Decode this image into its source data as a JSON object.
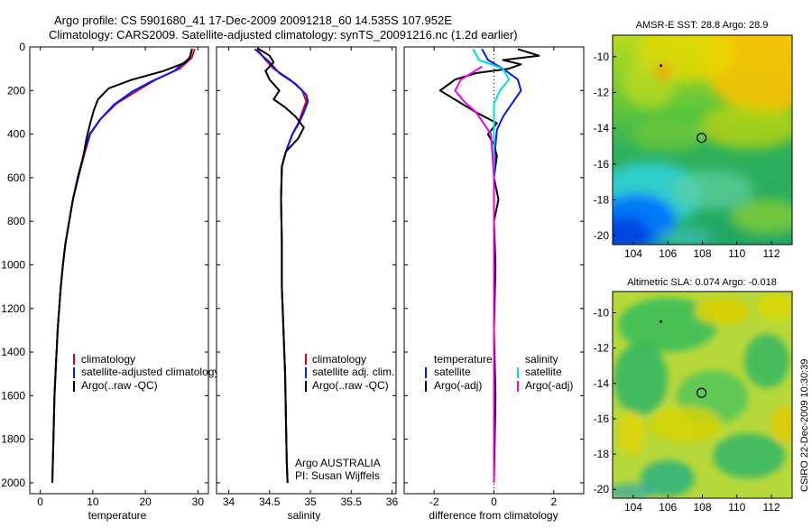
{
  "header": {
    "line1": "Argo profile: CS 5901680_41 17-Dec-2009 20091218_60 14.535S 107.952E",
    "line2": "Climatology: CARS2009. Satellite-adjusted climatology: synTS_20091216.nc (1.2d earlier)"
  },
  "credit": "CSIRO 22-Dec-2009 10:30:39",
  "chart_data": [
    {
      "type": "line",
      "panel": "temperature",
      "xlabel": "temperature",
      "ylabel": "",
      "xlim": [
        -2,
        32
      ],
      "ylim": [
        2050,
        0
      ],
      "x_ticks": [
        0,
        10,
        20,
        30
      ],
      "y_ticks": [
        0,
        200,
        400,
        600,
        800,
        1000,
        1200,
        1400,
        1600,
        1800,
        2000
      ],
      "legend": [
        "climatology",
        "satellite-adjusted climatology",
        "Argo(..raw -QC)"
      ],
      "series": [
        {
          "name": "climatology",
          "color": "#e00000",
          "points": [
            [
              29.4,
              10
            ],
            [
              28.8,
              50
            ],
            [
              26.5,
              100
            ],
            [
              22,
              150
            ],
            [
              18.5,
              200
            ],
            [
              14.5,
              260
            ],
            [
              11.5,
              330
            ],
            [
              9.5,
              400
            ],
            [
              8.3,
              500
            ],
            [
              7.2,
              600
            ],
            [
              6.2,
              700
            ],
            [
              5.5,
              800
            ],
            [
              4.8,
              900
            ],
            [
              4.3,
              1000
            ],
            [
              3.9,
              1100
            ],
            [
              3.6,
              1200
            ],
            [
              3.3,
              1300
            ],
            [
              3.1,
              1400
            ],
            [
              2.9,
              1500
            ],
            [
              2.7,
              1600
            ],
            [
              2.6,
              1700
            ],
            [
              2.5,
              1800
            ],
            [
              2.4,
              1900
            ],
            [
              2.3,
              2000
            ]
          ]
        },
        {
          "name": "satellite-adjusted climatology",
          "color": "#0018ff",
          "points": [
            [
              28.9,
              10
            ],
            [
              28.4,
              50
            ],
            [
              25.5,
              110
            ],
            [
              21,
              160
            ],
            [
              17.5,
              205
            ],
            [
              14,
              265
            ],
            [
              11.3,
              335
            ],
            [
              9.4,
              400
            ],
            [
              8.2,
              500
            ],
            [
              7.1,
              600
            ],
            [
              6.2,
              700
            ],
            [
              5.5,
              800
            ],
            [
              4.8,
              900
            ],
            [
              4.3,
              1000
            ],
            [
              3.9,
              1100
            ],
            [
              3.6,
              1200
            ],
            [
              3.3,
              1300
            ],
            [
              3.1,
              1400
            ],
            [
              2.9,
              1500
            ],
            [
              2.7,
              1600
            ],
            [
              2.6,
              1700
            ],
            [
              2.5,
              1800
            ],
            [
              2.4,
              1900
            ],
            [
              2.3,
              2000
            ]
          ]
        },
        {
          "name": "Argo(..raw -QC)",
          "color": "#000000",
          "points": [
            [
              28.9,
              8
            ],
            [
              28.5,
              45
            ],
            [
              27.8,
              70
            ],
            [
              23.5,
              110
            ],
            [
              17.5,
              150
            ],
            [
              13,
              190
            ],
            [
              11,
              240
            ],
            [
              10.2,
              290
            ],
            [
              9.5,
              350
            ],
            [
              8.8,
              420
            ],
            [
              8.2,
              500
            ],
            [
              7.2,
              600
            ],
            [
              6.2,
              700
            ],
            [
              5.5,
              800
            ],
            [
              4.8,
              900
            ],
            [
              4.3,
              1000
            ],
            [
              3.9,
              1100
            ],
            [
              3.6,
              1200
            ],
            [
              3.3,
              1300
            ],
            [
              3.1,
              1400
            ],
            [
              2.9,
              1500
            ],
            [
              2.7,
              1600
            ],
            [
              2.6,
              1700
            ],
            [
              2.5,
              1800
            ],
            [
              2.4,
              1900
            ],
            [
              2.3,
              2000
            ]
          ]
        }
      ]
    },
    {
      "type": "line",
      "panel": "salinity",
      "xlabel": "salinity",
      "ylabel": "",
      "xlim": [
        33.85,
        36.05
      ],
      "ylim": [
        2050,
        0
      ],
      "x_ticks": [
        34,
        34.5,
        35,
        35.5,
        36
      ],
      "x_tick_labels": [
        "34",
        "34.5",
        "35",
        "35.5",
        "36"
      ],
      "legend": [
        "climatology",
        "satellite adj. clim.",
        "Argo(..raw -QC)"
      ],
      "annotations": [
        "Argo AUSTRALIA",
        "PI: Susan Wijffels"
      ],
      "series": [
        {
          "name": "climatology",
          "color": "#e00000",
          "points": [
            [
              34.35,
              10
            ],
            [
              34.45,
              60
            ],
            [
              34.55,
              100
            ],
            [
              34.75,
              150
            ],
            [
              34.9,
              200
            ],
            [
              34.95,
              250
            ],
            [
              34.9,
              300
            ],
            [
              34.85,
              350
            ],
            [
              34.78,
              400
            ],
            [
              34.7,
              480
            ],
            [
              34.65,
              550
            ],
            [
              34.64,
              700
            ],
            [
              34.65,
              900
            ],
            [
              34.65,
              1100
            ],
            [
              34.67,
              1300
            ],
            [
              34.69,
              1500
            ],
            [
              34.7,
              1700
            ],
            [
              34.71,
              1900
            ],
            [
              34.72,
              2000
            ]
          ]
        },
        {
          "name": "satellite adj. clim.",
          "color": "#0018ff",
          "points": [
            [
              34.32,
              10
            ],
            [
              34.5,
              70
            ],
            [
              34.62,
              120
            ],
            [
              34.82,
              170
            ],
            [
              34.95,
              220
            ],
            [
              34.97,
              250
            ],
            [
              34.92,
              300
            ],
            [
              34.86,
              350
            ],
            [
              34.78,
              400
            ],
            [
              34.7,
              480
            ],
            [
              34.65,
              550
            ],
            [
              34.64,
              700
            ],
            [
              34.65,
              900
            ],
            [
              34.65,
              1100
            ],
            [
              34.67,
              1300
            ],
            [
              34.69,
              1500
            ],
            [
              34.7,
              1700
            ],
            [
              34.71,
              1900
            ],
            [
              34.72,
              2000
            ]
          ]
        },
        {
          "name": "Argo(..raw -QC)",
          "color": "#000000",
          "points": [
            [
              34.35,
              5
            ],
            [
              34.5,
              40
            ],
            [
              34.55,
              70
            ],
            [
              34.45,
              110
            ],
            [
              34.5,
              150
            ],
            [
              34.62,
              200
            ],
            [
              34.55,
              240
            ],
            [
              34.7,
              280
            ],
            [
              34.82,
              320
            ],
            [
              34.92,
              370
            ],
            [
              34.85,
              420
            ],
            [
              34.7,
              480
            ],
            [
              34.65,
              550
            ],
            [
              34.64,
              700
            ],
            [
              34.65,
              900
            ],
            [
              34.65,
              1100
            ],
            [
              34.67,
              1300
            ],
            [
              34.69,
              1500
            ],
            [
              34.7,
              1700
            ],
            [
              34.71,
              1900
            ],
            [
              34.72,
              2000
            ]
          ]
        }
      ]
    },
    {
      "type": "line",
      "panel": "difference",
      "xlabel": "difference from climatology",
      "ylabel": "",
      "xlim": [
        -3.0,
        3.0
      ],
      "ylim": [
        2050,
        0
      ],
      "x_ticks": [
        -2,
        0,
        2
      ],
      "legend": [
        "temperature",
        "satellite",
        "Argo(-adj)",
        "salinity",
        "satellite",
        "Argo(-adj)"
      ],
      "series": [
        {
          "name": "temperature satellite",
          "color": "#0018ff",
          "points": [
            [
              -0.4,
              10
            ],
            [
              -0.2,
              60
            ],
            [
              0.3,
              100
            ],
            [
              0.8,
              150
            ],
            [
              0.9,
              200
            ],
            [
              0.6,
              260
            ],
            [
              0.3,
              320
            ],
            [
              0.1,
              380
            ],
            [
              0.05,
              450
            ],
            [
              0.0,
              600
            ],
            [
              0.0,
              1000
            ],
            [
              0.0,
              2000
            ]
          ]
        },
        {
          "name": "temperature Argo(-adj)",
          "color": "#000000",
          "points": [
            [
              0.8,
              10
            ],
            [
              1.5,
              40
            ],
            [
              0.3,
              60
            ],
            [
              0.9,
              80
            ],
            [
              0.5,
              100
            ],
            [
              -0.6,
              120
            ],
            [
              -1.3,
              150
            ],
            [
              -1.8,
              200
            ],
            [
              -1.2,
              250
            ],
            [
              -0.6,
              300
            ],
            [
              0.1,
              350
            ],
            [
              -0.2,
              400
            ],
            [
              0.0,
              450
            ],
            [
              0.1,
              500
            ],
            [
              0.0,
              600
            ],
            [
              0.15,
              700
            ],
            [
              0.0,
              800
            ],
            [
              0.05,
              1000
            ],
            [
              0.0,
              1300
            ],
            [
              0.05,
              1600
            ],
            [
              0.0,
              2000
            ]
          ]
        },
        {
          "name": "salinity satellite",
          "color": "#00dddd",
          "points": [
            [
              -0.7,
              10
            ],
            [
              -0.5,
              60
            ],
            [
              0.3,
              100
            ],
            [
              0.5,
              150
            ],
            [
              0.2,
              200
            ],
            [
              0.0,
              260
            ],
            [
              0.0,
              350
            ],
            [
              0.0,
              600
            ],
            [
              0.0,
              2000
            ]
          ]
        },
        {
          "name": "salinity Argo(-adj)",
          "color": "#ee00ee",
          "points": [
            [
              -0.4,
              90
            ],
            [
              -1.1,
              150
            ],
            [
              -1.3,
              200
            ],
            [
              -1.0,
              250
            ],
            [
              -0.6,
              300
            ],
            [
              -0.1,
              400
            ],
            [
              0.0,
              600
            ],
            [
              0.0,
              2000
            ]
          ]
        }
      ]
    },
    {
      "type": "heatmap",
      "panel": "sst-map",
      "title": "AMSR-E SST: 28.8 Argo: 28.9",
      "xlim": [
        102.8,
        113.2
      ],
      "ylim": [
        -20.5,
        -8.8
      ],
      "x_ticks": [
        104,
        106,
        108,
        110,
        112
      ],
      "y_ticks": [
        -10,
        -12,
        -14,
        -16,
        -18,
        -20
      ],
      "markers": [
        {
          "label": "Argo position",
          "lon": 107.952,
          "lat": -14.535
        },
        {
          "label": "previous",
          "lon": 105.6,
          "lat": -10.5
        }
      ]
    },
    {
      "type": "heatmap",
      "panel": "sla-map",
      "title": "Altimetric SLA: 0.074 Argo: -0.018",
      "xlim": [
        102.8,
        113.2
      ],
      "ylim": [
        -20.5,
        -8.8
      ],
      "x_ticks": [
        104,
        106,
        108,
        110,
        112
      ],
      "y_ticks": [
        -10,
        -12,
        -14,
        -16,
        -18,
        -20
      ],
      "markers": [
        {
          "label": "Argo position",
          "lon": 107.952,
          "lat": -14.535
        },
        {
          "label": "previous",
          "lon": 105.6,
          "lat": -10.5
        }
      ]
    }
  ]
}
